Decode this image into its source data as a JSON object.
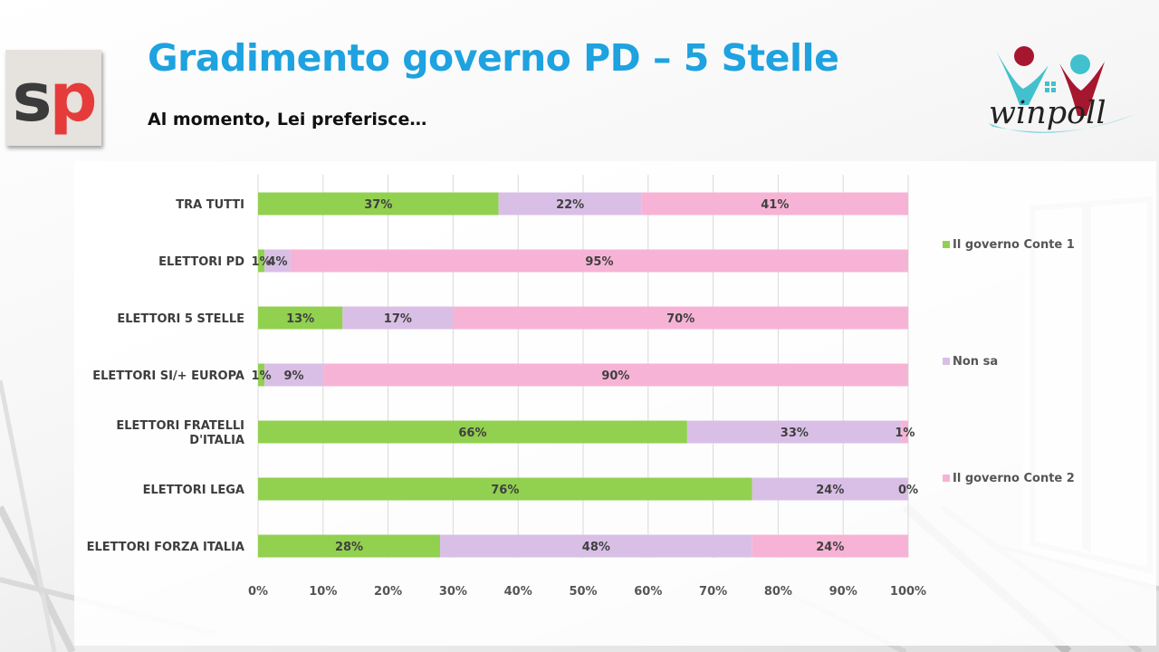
{
  "header": {
    "title": "Gradimento governo PD – 5 Stelle",
    "subtitle": "Al momento, Lei preferisce…"
  },
  "logos": {
    "left": {
      "s": "s",
      "p": "p"
    },
    "right": {
      "text": "winpoll"
    }
  },
  "colors": {
    "title": "#1ea2e0",
    "series": [
      "#92d050",
      "#d9bfe6",
      "#f7b3d5"
    ]
  },
  "chart_data": {
    "type": "bar",
    "orientation": "horizontal",
    "stacked": "100%",
    "categories": [
      [
        "TRA TUTTI"
      ],
      [
        "ELETTORI PD"
      ],
      [
        "ELETTORI 5 STELLE"
      ],
      [
        "ELETTORI SI/+ EUROPA"
      ],
      [
        "ELETTORI FRATELLI",
        "D'ITALIA"
      ],
      [
        "ELETTORI LEGA"
      ],
      [
        "ELETTORI FORZA ITALIA"
      ]
    ],
    "series": [
      {
        "name": "Il governo Conte 1",
        "color": "#92d050",
        "values": [
          37,
          1,
          13,
          1,
          66,
          76,
          28
        ]
      },
      {
        "name": "Non sa",
        "color": "#d9bfe6",
        "values": [
          22,
          4,
          17,
          9,
          33,
          24,
          48
        ]
      },
      {
        "name": "Il governo Conte 2",
        "color": "#f7b3d5",
        "values": [
          41,
          95,
          70,
          90,
          1,
          0,
          24
        ]
      }
    ],
    "x_ticks": [
      "0%",
      "10%",
      "20%",
      "30%",
      "40%",
      "50%",
      "60%",
      "70%",
      "80%",
      "90%",
      "100%"
    ],
    "xlim": [
      0,
      100
    ],
    "grid": true,
    "legend_position": "right"
  }
}
